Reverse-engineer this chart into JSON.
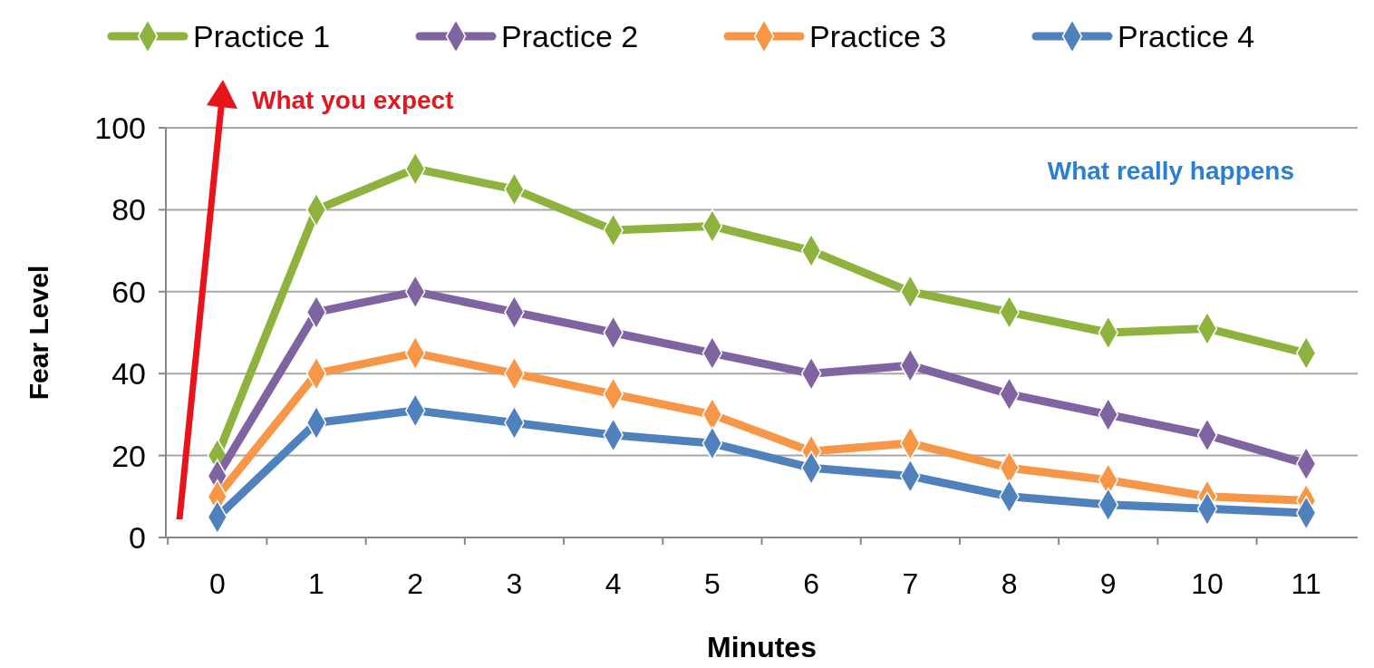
{
  "chart_data": {
    "type": "line",
    "xlabel": "Minutes",
    "ylabel": "Fear Level",
    "categories": [
      "0",
      "1",
      "2",
      "3",
      "4",
      "5",
      "6",
      "7",
      "8",
      "9",
      "10",
      "11"
    ],
    "series": [
      {
        "name": "Practice 1",
        "color": "#8db33e",
        "values": [
          20,
          80,
          90,
          85,
          75,
          76,
          70,
          60,
          55,
          50,
          51,
          45
        ]
      },
      {
        "name": "Practice 2",
        "color": "#8064a2",
        "values": [
          15,
          55,
          60,
          55,
          50,
          45,
          40,
          42,
          35,
          30,
          25,
          18
        ]
      },
      {
        "name": "Practice 3",
        "color": "#f79646",
        "values": [
          10,
          40,
          45,
          40,
          35,
          30,
          21,
          23,
          17,
          14,
          10,
          9
        ]
      },
      {
        "name": "Practice 4",
        "color": "#4f81bd",
        "values": [
          5,
          28,
          31,
          28,
          25,
          23,
          17,
          15,
          10,
          8,
          7,
          6
        ]
      }
    ],
    "ylim": [
      0,
      100
    ],
    "yticks": [
      0,
      20,
      40,
      60,
      80,
      100
    ],
    "grid": "y",
    "legend": "top",
    "marker": "diamond",
    "line_style": "solid",
    "annotations": [
      "What you expect",
      "What really happens"
    ]
  }
}
